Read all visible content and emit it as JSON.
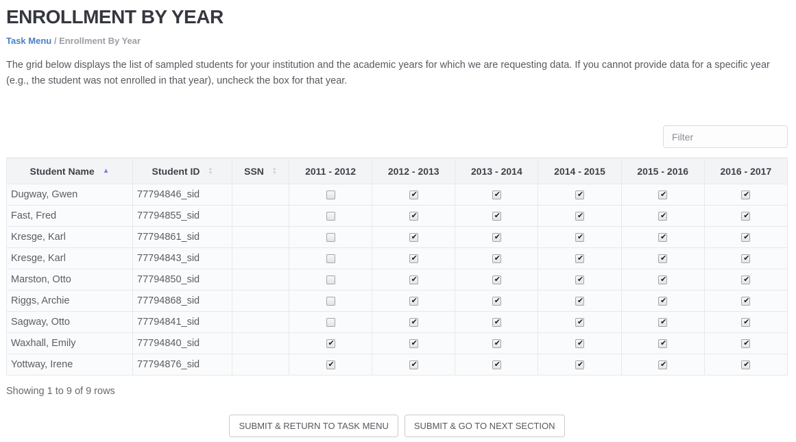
{
  "page": {
    "title": "ENROLLMENT BY YEAR",
    "breadcrumb": {
      "link": "Task Menu",
      "separator": " / ",
      "current": "Enrollment By Year"
    },
    "description": "The grid below displays the list of sampled students for your institution and the academic years for which we are requesting data. If you cannot provide data for a specific year (e.g., the student was not enrolled in that year), uncheck the box for that year."
  },
  "filter": {
    "placeholder": "Filter"
  },
  "table": {
    "columns": [
      {
        "label": "Student Name",
        "sort": "asc"
      },
      {
        "label": "Student ID",
        "sort": "none"
      },
      {
        "label": "SSN",
        "sort": "none"
      },
      {
        "label": "2011 - 2012"
      },
      {
        "label": "2012 - 2013"
      },
      {
        "label": "2013 - 2014"
      },
      {
        "label": "2014 - 2015"
      },
      {
        "label": "2015 - 2016"
      },
      {
        "label": "2016 - 2017"
      }
    ],
    "rows": [
      {
        "name": "Dugway, Gwen",
        "id": "77794846_sid",
        "ssn": "",
        "years": [
          false,
          true,
          true,
          true,
          true,
          true
        ]
      },
      {
        "name": "Fast, Fred",
        "id": "77794855_sid",
        "ssn": "",
        "years": [
          false,
          true,
          true,
          true,
          true,
          true
        ]
      },
      {
        "name": "Kresge, Karl",
        "id": "77794861_sid",
        "ssn": "",
        "years": [
          false,
          true,
          true,
          true,
          true,
          true
        ]
      },
      {
        "name": "Kresge, Karl",
        "id": "77794843_sid",
        "ssn": "",
        "years": [
          false,
          true,
          true,
          true,
          true,
          true
        ]
      },
      {
        "name": "Marston, Otto",
        "id": "77794850_sid",
        "ssn": "",
        "years": [
          false,
          true,
          true,
          true,
          true,
          true
        ]
      },
      {
        "name": "Riggs, Archie",
        "id": "77794868_sid",
        "ssn": "",
        "years": [
          false,
          true,
          true,
          true,
          true,
          true
        ]
      },
      {
        "name": "Sagway, Otto",
        "id": "77794841_sid",
        "ssn": "",
        "years": [
          false,
          true,
          true,
          true,
          true,
          true
        ]
      },
      {
        "name": "Waxhall, Emily",
        "id": "77794840_sid",
        "ssn": "",
        "years": [
          true,
          true,
          true,
          true,
          true,
          true
        ]
      },
      {
        "name": "Yottway, Irene",
        "id": "77794876_sid",
        "ssn": "",
        "years": [
          true,
          true,
          true,
          true,
          true,
          true
        ]
      }
    ]
  },
  "footer": {
    "status": "Showing 1 to 9 of 9 rows"
  },
  "buttons": {
    "return": "SUBMIT & RETURN TO TASK MENU",
    "next": "SUBMIT & GO TO NEXT SECTION"
  },
  "colors": {
    "link": "#4a7fc4",
    "sort_active": "#7d82d9",
    "sort_inactive": "#ccced2",
    "header_bg": "#f3f4f6",
    "row_bg": "#fafbfc",
    "border": "#e7e8eb"
  }
}
